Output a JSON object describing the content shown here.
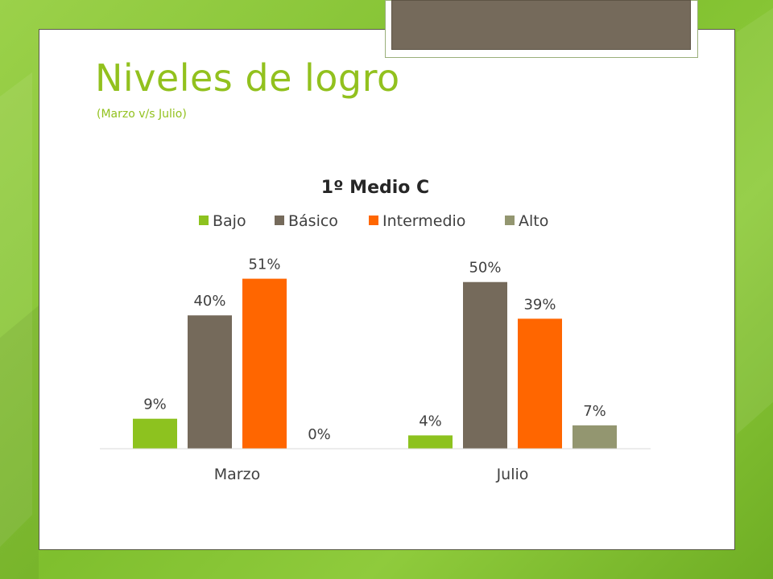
{
  "slide": {
    "title": "Niveles de logro",
    "subtitle": "(Marzo v/s Julio)"
  },
  "colors": {
    "bajo": "#8dc21f",
    "basico": "#756a5b",
    "intermedio": "#ff6600",
    "alto": "#939670",
    "title": "#92c11e",
    "axis": "#d9d9d9",
    "text": "#404040"
  },
  "chart_data": {
    "type": "bar",
    "title": "1º Medio C",
    "categories": [
      "Marzo",
      "Julio"
    ],
    "series": [
      {
        "name": "Bajo",
        "values": [
          9,
          4
        ],
        "labels": [
          "9%",
          "4%"
        ]
      },
      {
        "name": "Básico",
        "values": [
          40,
          50
        ],
        "labels": [
          "40%",
          "50%"
        ]
      },
      {
        "name": "Intermedio",
        "values": [
          51,
          39
        ],
        "labels": [
          "51%",
          "39%"
        ]
      },
      {
        "name": "Alto",
        "values": [
          0,
          7
        ],
        "labels": [
          "0%",
          "7%"
        ]
      }
    ],
    "ylim": [
      0,
      55
    ],
    "grid": false,
    "legend": "top"
  }
}
